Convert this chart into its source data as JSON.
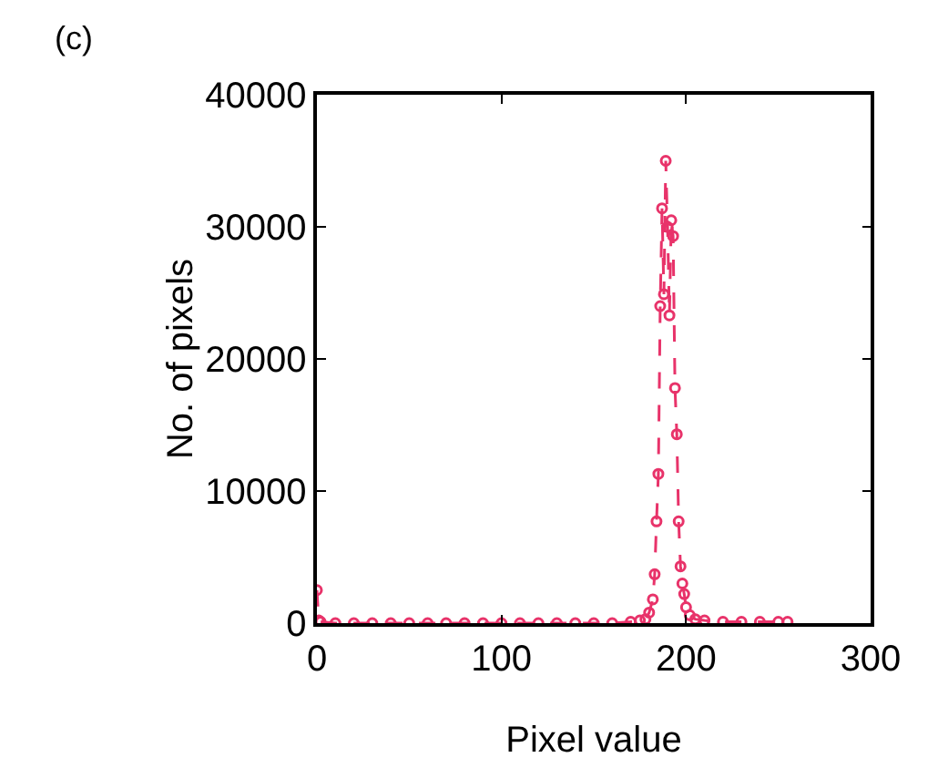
{
  "chart_data": {
    "type": "line",
    "annotations": [
      "(c)"
    ],
    "xlabel": "Pixel value",
    "ylabel": "No. of pixels",
    "x": [
      0,
      1,
      2,
      10,
      20,
      30,
      40,
      50,
      60,
      70,
      80,
      90,
      100,
      110,
      120,
      130,
      140,
      150,
      160,
      170,
      175,
      178,
      180,
      182,
      183,
      184,
      185,
      186,
      187,
      188,
      189,
      190,
      191,
      192,
      193,
      194,
      195,
      196,
      197,
      198,
      199,
      200,
      202,
      205,
      210,
      220,
      230,
      240,
      250,
      255
    ],
    "series": [
      {
        "color": "#e8336a",
        "values": [
          2500,
          200,
          100,
          0,
          0,
          0,
          0,
          0,
          0,
          0,
          0,
          0,
          0,
          0,
          0,
          0,
          0,
          0,
          0,
          100,
          200,
          300,
          800,
          1800,
          3700,
          7700,
          11300,
          24000,
          31400,
          24900,
          35000,
          30000,
          23300,
          30500,
          29300,
          17800,
          14300,
          7700,
          4300,
          3000,
          2200,
          1200,
          600,
          300,
          200,
          100,
          100,
          100,
          100,
          100
        ]
      }
    ],
    "xlim": [
      0,
      300
    ],
    "xticks": [
      0,
      100,
      200,
      300
    ],
    "ylim": [
      0,
      40000
    ],
    "yticks": [
      0,
      10000,
      20000,
      30000,
      40000
    ],
    "grid": false,
    "marker": "circle",
    "line_style": "dashed"
  }
}
